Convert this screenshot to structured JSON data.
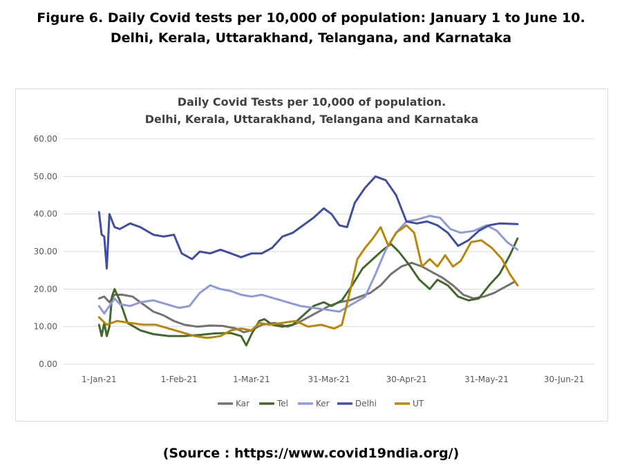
{
  "figure": {
    "title_line1": "Figure 6. Daily Covid tests per 10,000 of population: January 1 to June 10.",
    "title_line2": "Delhi, Kerala, Uttarakhand, Telangana, and Karnataka",
    "source": "(Source : https://www.covid19ndia.org/)"
  },
  "chart_data": {
    "type": "line",
    "title": "Daily Covid Tests per 10,000 of population.",
    "subtitle": "Delhi, Kerala, Uttarakhand, Telangana and Karnataka",
    "xlabel": "",
    "ylabel": "",
    "x_ticks": [
      "1-Jan-21",
      "1-Feb-21",
      "1-Mar-21",
      "31-Mar-21",
      "30-Apr-21",
      "31-May-21",
      "30-Jun-21"
    ],
    "x_range": [
      "2020-12-18",
      "2021-07-12"
    ],
    "y_ticks": [
      "0.00",
      "10.00",
      "20.00",
      "30.00",
      "40.00",
      "50.00",
      "60.00"
    ],
    "ylim": [
      0,
      60
    ],
    "grid": "horizontal",
    "legend_position": "bottom",
    "series": [
      {
        "name": "Kar",
        "color": "#767171",
        "points": [
          [
            "2021-01-01",
            17.5
          ],
          [
            "2021-01-03",
            18.0
          ],
          [
            "2021-01-05",
            16.5
          ],
          [
            "2021-01-07",
            18.5
          ],
          [
            "2021-01-10",
            18.5
          ],
          [
            "2021-01-14",
            18.0
          ],
          [
            "2021-01-18",
            16.0
          ],
          [
            "2021-01-22",
            14.0
          ],
          [
            "2021-01-26",
            13.0
          ],
          [
            "2021-01-30",
            11.5
          ],
          [
            "2021-02-03",
            10.5
          ],
          [
            "2021-02-08",
            10.0
          ],
          [
            "2021-02-13",
            10.3
          ],
          [
            "2021-02-18",
            10.2
          ],
          [
            "2021-02-23",
            9.5
          ],
          [
            "2021-02-26",
            8.5
          ],
          [
            "2021-03-01",
            9.0
          ],
          [
            "2021-03-05",
            10.5
          ],
          [
            "2021-03-10",
            11.0
          ],
          [
            "2021-03-15",
            10.0
          ],
          [
            "2021-03-19",
            11.0
          ],
          [
            "2021-03-23",
            12.5
          ],
          [
            "2021-03-27",
            14.0
          ],
          [
            "2021-03-31",
            15.5
          ],
          [
            "2021-04-04",
            16.5
          ],
          [
            "2021-04-08",
            17.0
          ],
          [
            "2021-04-12",
            18.0
          ],
          [
            "2021-04-16",
            19.0
          ],
          [
            "2021-04-20",
            21.0
          ],
          [
            "2021-04-24",
            24.0
          ],
          [
            "2021-04-28",
            26.0
          ],
          [
            "2021-05-02",
            27.0
          ],
          [
            "2021-05-06",
            26.0
          ],
          [
            "2021-05-10",
            24.5
          ],
          [
            "2021-05-14",
            23.0
          ],
          [
            "2021-05-18",
            21.0
          ],
          [
            "2021-05-22",
            18.5
          ],
          [
            "2021-05-26",
            17.5
          ],
          [
            "2021-05-30",
            18.0
          ],
          [
            "2021-06-03",
            19.0
          ],
          [
            "2021-06-07",
            20.5
          ],
          [
            "2021-06-11",
            22.0
          ]
        ]
      },
      {
        "name": "Tel",
        "color": "#43682b",
        "points": [
          [
            "2021-01-01",
            10.5
          ],
          [
            "2021-01-02",
            7.5
          ],
          [
            "2021-01-03",
            11.0
          ],
          [
            "2021-01-04",
            7.5
          ],
          [
            "2021-01-05",
            10.0
          ],
          [
            "2021-01-06",
            18.0
          ],
          [
            "2021-01-07",
            20.0
          ],
          [
            "2021-01-09",
            17.0
          ],
          [
            "2021-01-12",
            11.0
          ],
          [
            "2021-01-17",
            9.0
          ],
          [
            "2021-01-22",
            8.0
          ],
          [
            "2021-01-28",
            7.5
          ],
          [
            "2021-02-03",
            7.5
          ],
          [
            "2021-02-09",
            7.8
          ],
          [
            "2021-02-15",
            8.2
          ],
          [
            "2021-02-21",
            8.3
          ],
          [
            "2021-02-25",
            7.5
          ],
          [
            "2021-02-27",
            5.0
          ],
          [
            "2021-03-01",
            8.0
          ],
          [
            "2021-03-04",
            11.5
          ],
          [
            "2021-03-06",
            12.0
          ],
          [
            "2021-03-09",
            10.5
          ],
          [
            "2021-03-13",
            10.0
          ],
          [
            "2021-03-17",
            10.5
          ],
          [
            "2021-03-21",
            13.0
          ],
          [
            "2021-03-25",
            15.5
          ],
          [
            "2021-03-29",
            16.5
          ],
          [
            "2021-04-01",
            15.5
          ],
          [
            "2021-04-05",
            17.0
          ],
          [
            "2021-04-09",
            21.0
          ],
          [
            "2021-04-13",
            25.5
          ],
          [
            "2021-04-17",
            28.0
          ],
          [
            "2021-04-21",
            30.5
          ],
          [
            "2021-04-24",
            32.0
          ],
          [
            "2021-04-27",
            30.0
          ],
          [
            "2021-05-01",
            26.5
          ],
          [
            "2021-05-05",
            22.5
          ],
          [
            "2021-05-09",
            20.0
          ],
          [
            "2021-05-12",
            22.5
          ],
          [
            "2021-05-16",
            21.0
          ],
          [
            "2021-05-20",
            18.0
          ],
          [
            "2021-05-24",
            17.0
          ],
          [
            "2021-05-28",
            17.5
          ],
          [
            "2021-06-01",
            21.0
          ],
          [
            "2021-06-05",
            24.0
          ],
          [
            "2021-06-09",
            29.0
          ],
          [
            "2021-06-12",
            33.5
          ]
        ]
      },
      {
        "name": "Ker",
        "color": "#8e9ad8",
        "points": [
          [
            "2021-01-01",
            15.5
          ],
          [
            "2021-01-03",
            13.5
          ],
          [
            "2021-01-05",
            15.5
          ],
          [
            "2021-01-07",
            17.5
          ],
          [
            "2021-01-09",
            16.0
          ],
          [
            "2021-01-13",
            15.5
          ],
          [
            "2021-01-17",
            16.5
          ],
          [
            "2021-01-22",
            17.0
          ],
          [
            "2021-01-27",
            16.0
          ],
          [
            "2021-02-01",
            15.0
          ],
          [
            "2021-02-05",
            15.5
          ],
          [
            "2021-02-09",
            19.0
          ],
          [
            "2021-02-13",
            21.0
          ],
          [
            "2021-02-17",
            20.0
          ],
          [
            "2021-02-21",
            19.5
          ],
          [
            "2021-02-25",
            18.5
          ],
          [
            "2021-03-01",
            18.0
          ],
          [
            "2021-03-05",
            18.5
          ],
          [
            "2021-03-10",
            17.5
          ],
          [
            "2021-03-15",
            16.5
          ],
          [
            "2021-03-20",
            15.5
          ],
          [
            "2021-03-25",
            15.0
          ],
          [
            "2021-03-30",
            14.5
          ],
          [
            "2021-04-04",
            14.0
          ],
          [
            "2021-04-09",
            16.0
          ],
          [
            "2021-04-14",
            18.0
          ],
          [
            "2021-04-18",
            24.0
          ],
          [
            "2021-04-22",
            30.5
          ],
          [
            "2021-04-26",
            35.0
          ],
          [
            "2021-04-30",
            38.0
          ],
          [
            "2021-05-04",
            38.5
          ],
          [
            "2021-05-09",
            39.5
          ],
          [
            "2021-05-13",
            39.0
          ],
          [
            "2021-05-17",
            36.0
          ],
          [
            "2021-05-21",
            35.0
          ],
          [
            "2021-05-26",
            35.5
          ],
          [
            "2021-05-31",
            37.0
          ],
          [
            "2021-06-04",
            35.5
          ],
          [
            "2021-06-08",
            32.5
          ],
          [
            "2021-06-12",
            30.5
          ]
        ]
      },
      {
        "name": "Delhi",
        "color": "#3f4ea1",
        "points": [
          [
            "2021-01-01",
            40.5
          ],
          [
            "2021-01-02",
            34.5
          ],
          [
            "2021-01-03",
            34.0
          ],
          [
            "2021-01-04",
            25.5
          ],
          [
            "2021-01-05",
            40.0
          ],
          [
            "2021-01-07",
            36.5
          ],
          [
            "2021-01-09",
            36.0
          ],
          [
            "2021-01-13",
            37.5
          ],
          [
            "2021-01-17",
            36.5
          ],
          [
            "2021-01-22",
            34.5
          ],
          [
            "2021-01-26",
            34.0
          ],
          [
            "2021-01-30",
            34.5
          ],
          [
            "2021-02-02",
            29.5
          ],
          [
            "2021-02-06",
            28.0
          ],
          [
            "2021-02-09",
            30.0
          ],
          [
            "2021-02-13",
            29.5
          ],
          [
            "2021-02-17",
            30.5
          ],
          [
            "2021-02-21",
            29.5
          ],
          [
            "2021-02-25",
            28.5
          ],
          [
            "2021-03-01",
            29.5
          ],
          [
            "2021-03-05",
            29.5
          ],
          [
            "2021-03-09",
            31.0
          ],
          [
            "2021-03-13",
            34.0
          ],
          [
            "2021-03-17",
            35.0
          ],
          [
            "2021-03-21",
            37.0
          ],
          [
            "2021-03-25",
            39.0
          ],
          [
            "2021-03-29",
            41.5
          ],
          [
            "2021-04-01",
            40.0
          ],
          [
            "2021-04-04",
            37.0
          ],
          [
            "2021-04-07",
            36.5
          ],
          [
            "2021-04-10",
            43.0
          ],
          [
            "2021-04-14",
            47.0
          ],
          [
            "2021-04-18",
            50.0
          ],
          [
            "2021-04-22",
            49.0
          ],
          [
            "2021-04-26",
            45.0
          ],
          [
            "2021-04-30",
            38.0
          ],
          [
            "2021-05-04",
            37.5
          ],
          [
            "2021-05-08",
            38.0
          ],
          [
            "2021-05-12",
            37.0
          ],
          [
            "2021-05-16",
            35.0
          ],
          [
            "2021-05-20",
            31.5
          ],
          [
            "2021-05-24",
            33.0
          ],
          [
            "2021-05-28",
            35.5
          ],
          [
            "2021-06-01",
            37.0
          ],
          [
            "2021-06-05",
            37.5
          ],
          [
            "2021-06-12",
            37.3
          ]
        ]
      },
      {
        "name": "UT",
        "color": "#b8860b",
        "points": [
          [
            "2021-01-01",
            12.5
          ],
          [
            "2021-01-04",
            10.5
          ],
          [
            "2021-01-08",
            11.5
          ],
          [
            "2021-01-13",
            11.0
          ],
          [
            "2021-01-18",
            10.5
          ],
          [
            "2021-01-23",
            10.5
          ],
          [
            "2021-01-28",
            9.5
          ],
          [
            "2021-02-02",
            8.5
          ],
          [
            "2021-02-07",
            7.5
          ],
          [
            "2021-02-12",
            7.0
          ],
          [
            "2021-02-17",
            7.5
          ],
          [
            "2021-02-21",
            9.0
          ],
          [
            "2021-02-25",
            9.5
          ],
          [
            "2021-03-01",
            9.0
          ],
          [
            "2021-03-04",
            11.0
          ],
          [
            "2021-03-08",
            10.5
          ],
          [
            "2021-03-13",
            11.0
          ],
          [
            "2021-03-18",
            11.5
          ],
          [
            "2021-03-23",
            10.0
          ],
          [
            "2021-03-28",
            10.5
          ],
          [
            "2021-04-02",
            9.5
          ],
          [
            "2021-04-05",
            10.5
          ],
          [
            "2021-04-08",
            19.0
          ],
          [
            "2021-04-11",
            28.0
          ],
          [
            "2021-04-14",
            31.0
          ],
          [
            "2021-04-17",
            33.5
          ],
          [
            "2021-04-20",
            36.5
          ],
          [
            "2021-04-23",
            31.5
          ],
          [
            "2021-04-26",
            35.0
          ],
          [
            "2021-04-30",
            37.0
          ],
          [
            "2021-05-03",
            35.0
          ],
          [
            "2021-05-06",
            26.0
          ],
          [
            "2021-05-09",
            28.0
          ],
          [
            "2021-05-12",
            26.0
          ],
          [
            "2021-05-15",
            29.0
          ],
          [
            "2021-05-18",
            26.0
          ],
          [
            "2021-05-21",
            27.5
          ],
          [
            "2021-05-25",
            32.5
          ],
          [
            "2021-05-29",
            33.0
          ],
          [
            "2021-06-02",
            31.0
          ],
          [
            "2021-06-06",
            28.0
          ],
          [
            "2021-06-09",
            24.0
          ],
          [
            "2021-06-12",
            21.0
          ]
        ]
      }
    ]
  }
}
